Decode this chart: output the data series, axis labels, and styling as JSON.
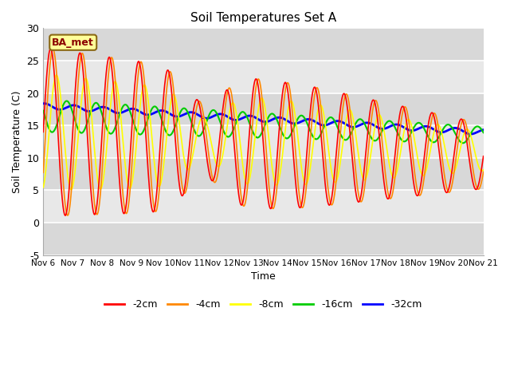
{
  "title": "Soil Temperatures Set A",
  "xlabel": "Time",
  "ylabel": "Soil Temperature (C)",
  "ylim": [
    -5,
    30
  ],
  "xlim": [
    0,
    15
  ],
  "label_box_text": "BA_met",
  "legend_labels": [
    "-2cm",
    "-4cm",
    "-8cm",
    "-16cm",
    "-32cm"
  ],
  "line_colors": [
    "#ff0000",
    "#ff8800",
    "#ffff00",
    "#00cc00",
    "#0000ff"
  ],
  "xtick_labels": [
    "Nov 6",
    "Nov 7",
    "Nov 8",
    "Nov 9",
    "Nov 10",
    "Nov 11",
    "Nov 12",
    "Nov 13",
    "Nov 14",
    "Nov 15",
    "Nov 16",
    "Nov 17",
    "Nov 18",
    "Nov 19",
    "Nov 20",
    "Nov 21"
  ],
  "ytick_values": [
    -5,
    0,
    5,
    10,
    15,
    20,
    25,
    30
  ],
  "bg_bands": [
    {
      "ymin": -5,
      "ymax": 0,
      "color": "#d8d8d8"
    },
    {
      "ymin": 0,
      "ymax": 5,
      "color": "#e8e8e8"
    },
    {
      "ymin": 5,
      "ymax": 10,
      "color": "#d8d8d8"
    },
    {
      "ymin": 10,
      "ymax": 15,
      "color": "#e8e8e8"
    },
    {
      "ymin": 15,
      "ymax": 20,
      "color": "#d8d8d8"
    },
    {
      "ymin": 20,
      "ymax": 25,
      "color": "#e8e8e8"
    },
    {
      "ymin": 25,
      "ymax": 30,
      "color": "#d8d8d8"
    }
  ]
}
